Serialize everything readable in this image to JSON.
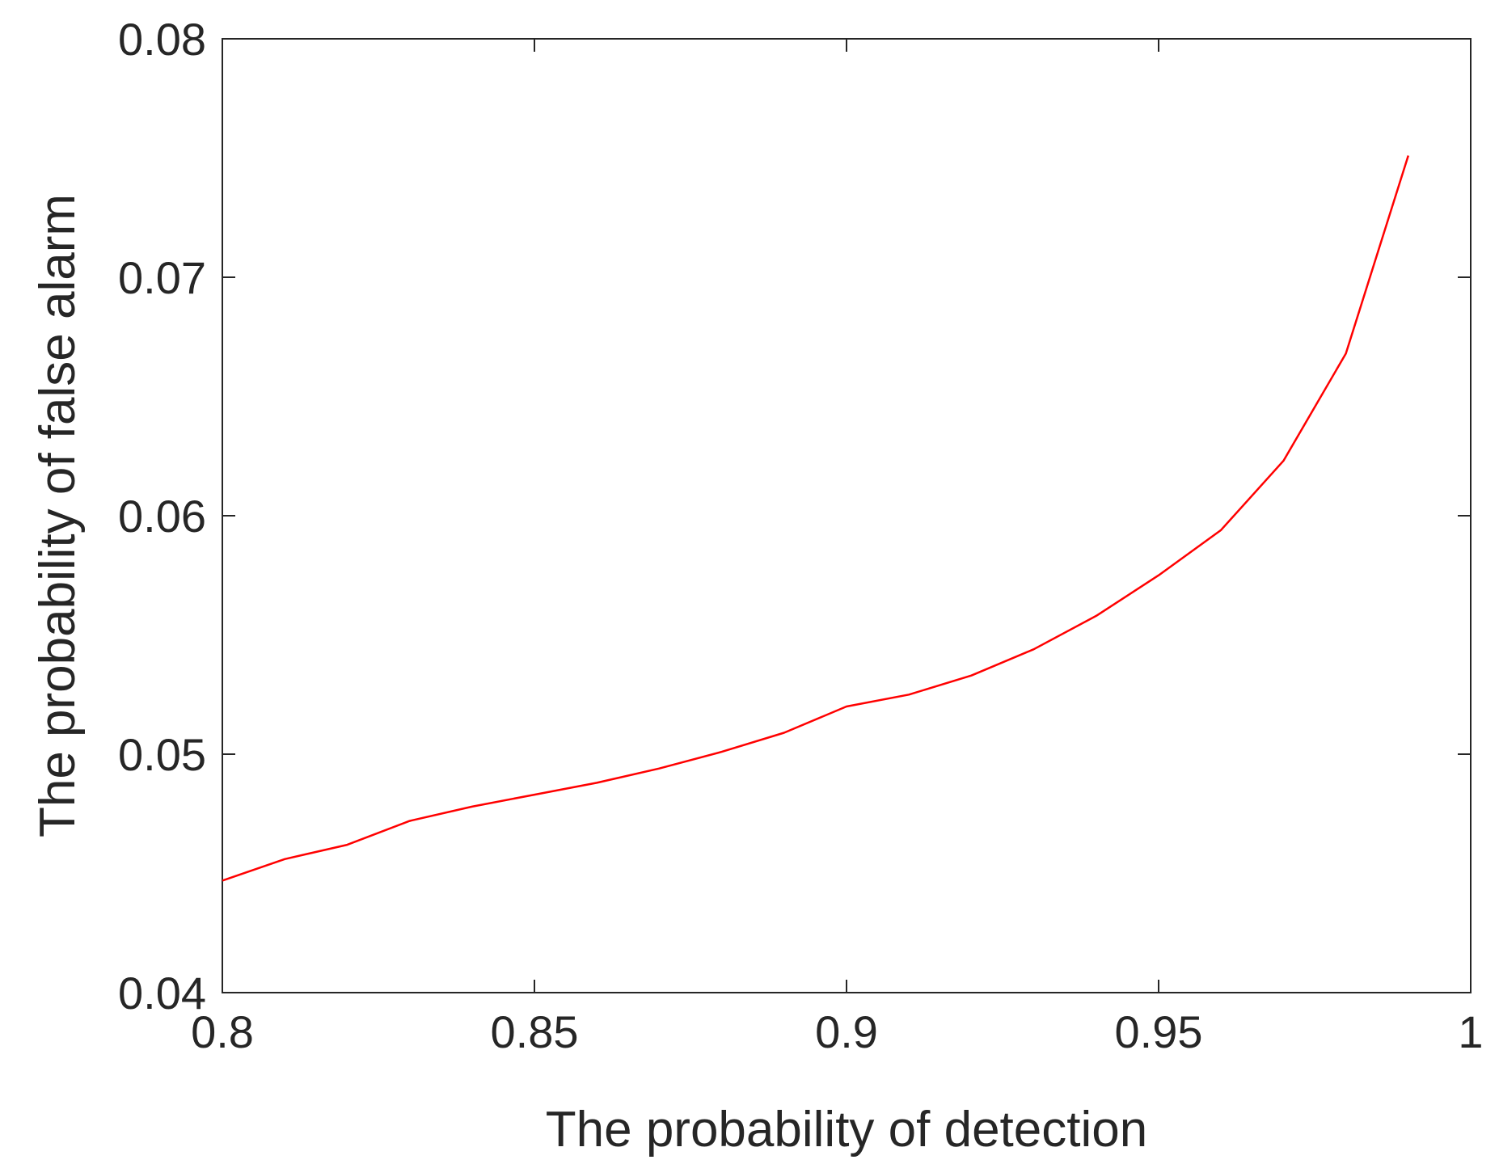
{
  "chart_data": {
    "type": "line",
    "title": "",
    "xlabel": "The probability of detection",
    "ylabel": "The probability of false alarm",
    "xlim": [
      0.8,
      1.0
    ],
    "ylim": [
      0.04,
      0.08
    ],
    "xticks": [
      0.8,
      0.85,
      0.9,
      0.95,
      1.0
    ],
    "xtick_labels": [
      "0.8",
      "0.85",
      "0.9",
      "0.95",
      "1"
    ],
    "yticks": [
      0.04,
      0.05,
      0.06,
      0.07,
      0.08
    ],
    "ytick_labels": [
      "0.04",
      "0.05",
      "0.06",
      "0.07",
      "0.08"
    ],
    "grid": false,
    "legend": "none",
    "series": [
      {
        "color": "#ff0000",
        "x": [
          0.8,
          0.81,
          0.82,
          0.83,
          0.84,
          0.85,
          0.86,
          0.87,
          0.88,
          0.89,
          0.9,
          0.91,
          0.92,
          0.93,
          0.94,
          0.95,
          0.96,
          0.97,
          0.98,
          0.99
        ],
        "y": [
          0.0447,
          0.0456,
          0.0462,
          0.0472,
          0.0478,
          0.0483,
          0.0488,
          0.0494,
          0.0501,
          0.0509,
          0.052,
          0.0525,
          0.0533,
          0.0544,
          0.0558,
          0.0575,
          0.0594,
          0.0623,
          0.0668,
          0.0751
        ]
      }
    ]
  }
}
